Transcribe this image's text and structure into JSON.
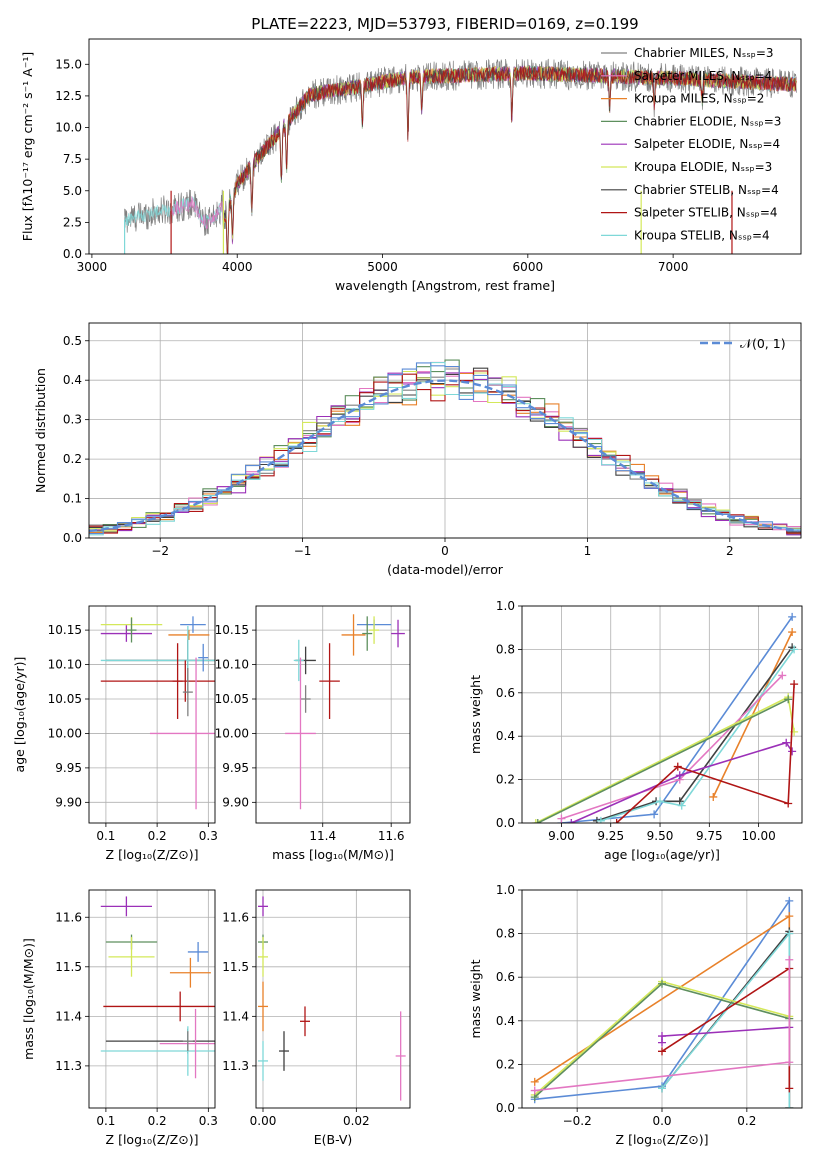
{
  "figure_title": "PLATE=2223, MJD=53793, FIBERID=0169, z=0.199",
  "colors": {
    "chabrier_miles": "#808080",
    "salpeter_miles": "#e377c2",
    "kroupa_miles": "#e8812a",
    "chabrier_elodie": "#5e8f5e",
    "salpeter_elodie": "#9b30b8",
    "kroupa_elodie": "#d4e85a",
    "chabrier_stelib": "#404040",
    "salpeter_stelib": "#b01515",
    "kroupa_stelib": "#7fd8d8",
    "gaussian": "#5b8bd6",
    "cross_blue": "#5b8bd6",
    "grid": "#b0b0b0"
  },
  "chart_data": [
    {
      "id": "spectrum",
      "type": "line",
      "xlabel": "wavelength [Angstrom, rest frame]",
      "ylabel": "Flux [fλ10⁻¹⁷ erg cm⁻² s⁻¹ A⁻¹]",
      "xlim": [
        2980,
        7880
      ],
      "ylim": [
        0,
        17
      ],
      "xticks": [
        "3000",
        "4000",
        "5000",
        "6000",
        "7000"
      ],
      "yticks": [
        "0.0",
        "2.5",
        "5.0",
        "7.5",
        "10.0",
        "12.5",
        "15.0"
      ],
      "xtick_values": [
        3000,
        4000,
        5000,
        6000,
        7000
      ],
      "ytick_values": [
        0,
        2.5,
        5,
        7.5,
        10,
        12.5,
        15
      ],
      "spectrum_range": [
        3225,
        7850
      ],
      "legend": [
        {
          "label": "Chabrier MILES, Nₛₛₚ=3",
          "key": "chabrier_miles"
        },
        {
          "label": "Salpeter MILES, Nₛₛₚ=4",
          "key": "salpeter_miles"
        },
        {
          "label": "Kroupa MILES, Nₛₛₚ=2",
          "key": "kroupa_miles"
        },
        {
          "label": "Chabrier ELODIE, Nₛₛₚ=3",
          "key": "chabrier_elodie"
        },
        {
          "label": "Salpeter ELODIE, Nₛₛₚ=4",
          "key": "salpeter_elodie"
        },
        {
          "label": "Kroupa ELODIE, Nₛₛₚ=3",
          "key": "kroupa_elodie"
        },
        {
          "label": "Chabrier STELIB, Nₛₛₚ=4",
          "key": "chabrier_stelib"
        },
        {
          "label": "Salpeter STELIB, Nₛₛₚ=4",
          "key": "salpeter_stelib"
        },
        {
          "label": "Kroupa STELIB, Nₛₛₚ=4",
          "key": "kroupa_stelib"
        }
      ],
      "legend_placement": "right",
      "model_start_lines": [
        3545,
        3905,
        6780,
        7405
      ]
    },
    {
      "id": "residuals",
      "type": "histogram",
      "xlabel": "(data-model)/error",
      "ylabel": "Normed distribution",
      "xlim": [
        -2.5,
        2.5
      ],
      "ylim": [
        0,
        0.545
      ],
      "xticks": [
        "−2",
        "−1",
        "0",
        "1",
        "2"
      ],
      "yticks": [
        "0.0",
        "0.1",
        "0.2",
        "0.3",
        "0.4",
        "0.5"
      ],
      "xtick_values": [
        -2,
        -1,
        0,
        1,
        2
      ],
      "ytick_values": [
        0,
        0.1,
        0.2,
        0.3,
        0.4,
        0.5
      ],
      "gaussian_label": "𝒩(0, 1)",
      "legend_placement": "top-right",
      "grid": true,
      "bin_width": 0.1
    },
    {
      "id": "age_vs_Z",
      "type": "scatter",
      "xlabel": "Z [log₁₀(Z/Z⊙)]",
      "ylabel": "age  [log₁₀(age/yr)]",
      "xlim": [
        0.067,
        0.313
      ],
      "ylim": [
        9.87,
        10.185
      ],
      "xticks": [
        "0.1",
        "0.2",
        "0.3"
      ],
      "xtick_values": [
        0.1,
        0.2,
        0.3
      ],
      "yticks": [
        "9.90",
        "9.95",
        "10.00",
        "10.05",
        "10.10",
        "10.15"
      ],
      "ytick_values": [
        9.9,
        9.95,
        10.0,
        10.05,
        10.1,
        10.15
      ],
      "points": [
        {
          "x": 0.15,
          "y": 10.158,
          "xerr": 0.06,
          "yerr": 0.011,
          "c": "kroupa_elodie"
        },
        {
          "x": 0.14,
          "y": 10.145,
          "xerr": 0.05,
          "yerr": 0.012,
          "c": "salpeter_elodie"
        },
        {
          "x": 0.15,
          "y": 10.15,
          "xerr": 0.0,
          "yerr": 0.018,
          "c": "chabrier_elodie"
        },
        {
          "x": 0.27,
          "y": 10.158,
          "xerr": 0.025,
          "yerr": 0.012,
          "c": "cross_blue"
        },
        {
          "x": 0.262,
          "y": 10.143,
          "xerr": 0.04,
          "yerr": 0.0,
          "c": "kroupa_miles"
        },
        {
          "x": 0.26,
          "y": 10.106,
          "xerr": 0.16,
          "yerr": 0.03,
          "c": "chabrier_stelib"
        },
        {
          "x": 0.26,
          "y": 10.106,
          "xerr": 0.17,
          "yerr": 0.05,
          "c": "kroupa_stelib"
        },
        {
          "x": 0.255,
          "y": 10.076,
          "xerr": 0.165,
          "yerr": 0.03,
          "c": "salpeter_stelib"
        },
        {
          "x": 0.24,
          "y": 10.076,
          "xerr": 0.0,
          "yerr": 0.055,
          "c": "salpeter_stelib"
        },
        {
          "x": 0.26,
          "y": 10.06,
          "xerr": 0.0,
          "yerr": 0.035,
          "c": "chabrier_miles"
        },
        {
          "x": 0.276,
          "y": 10.0,
          "xerr": 0.09,
          "yerr": 0.11,
          "c": "salpeter_miles"
        },
        {
          "x": 0.29,
          "y": 10.11,
          "xerr": 0.0,
          "yerr": 0.02,
          "c": "cross_blue"
        }
      ]
    },
    {
      "id": "age_vs_mass",
      "type": "scatter",
      "xlabel": "mass [log₁₀(M/M⊙)]",
      "ylabel": "",
      "xlim": [
        11.205,
        11.655
      ],
      "ylim": [
        9.87,
        10.185
      ],
      "xticks": [
        "11.4",
        "11.6"
      ],
      "xtick_values": [
        11.4,
        11.6
      ],
      "yticks": [
        "9.90",
        "9.95",
        "10.00",
        "10.05",
        "10.10",
        "10.15"
      ],
      "ytick_values": [
        9.9,
        9.95,
        10.0,
        10.05,
        10.1,
        10.15
      ],
      "points": [
        {
          "x": 11.55,
          "y": 10.158,
          "xerr": 0.05,
          "yerr": 0.0,
          "c": "cross_blue"
        },
        {
          "x": 11.62,
          "y": 10.145,
          "xerr": 0.02,
          "yerr": 0.02,
          "c": "salpeter_elodie"
        },
        {
          "x": 11.55,
          "y": 10.15,
          "xerr": 0.0,
          "yerr": 0.02,
          "c": "kroupa_elodie"
        },
        {
          "x": 11.53,
          "y": 10.145,
          "xerr": 0.0,
          "yerr": 0.025,
          "c": "chabrier_elodie"
        },
        {
          "x": 11.49,
          "y": 10.143,
          "xerr": 0.035,
          "yerr": 0.03,
          "c": "kroupa_miles"
        },
        {
          "x": 11.35,
          "y": 10.106,
          "xerr": 0.03,
          "yerr": 0.02,
          "c": "chabrier_stelib"
        },
        {
          "x": 11.33,
          "y": 10.106,
          "xerr": 0.0,
          "yerr": 0.03,
          "c": "kroupa_stelib"
        },
        {
          "x": 11.42,
          "y": 10.076,
          "xerr": 0.03,
          "yerr": 0.055,
          "c": "salpeter_stelib"
        },
        {
          "x": 11.35,
          "y": 10.05,
          "xerr": 0.0,
          "yerr": 0.02,
          "c": "chabrier_miles"
        },
        {
          "x": 11.335,
          "y": 10.0,
          "xerr": 0.045,
          "yerr": 0.11,
          "c": "salpeter_miles"
        }
      ]
    },
    {
      "id": "mass_weight_vs_age",
      "type": "line",
      "xlabel": "age  [log₁₀(age/yr)]",
      "ylabel": "mass weight",
      "xlim": [
        8.8,
        10.22
      ],
      "ylim": [
        0,
        1.0
      ],
      "xticks": [
        "9.00",
        "9.25",
        "9.50",
        "9.75",
        "10.00"
      ],
      "xtick_values": [
        9.0,
        9.25,
        9.5,
        9.75,
        10.0
      ],
      "yticks": [
        "0.0",
        "0.2",
        "0.4",
        "0.6",
        "0.8",
        "1.0"
      ],
      "ytick_values": [
        0,
        0.2,
        0.4,
        0.6,
        0.8,
        1.0
      ],
      "series": [
        {
          "c": "cross_blue",
          "x": [
            9.0,
            9.47,
            10.17
          ],
          "y": [
            0.0,
            0.04,
            0.95
          ]
        },
        {
          "c": "kroupa_miles",
          "x": [
            9.77,
            10.17
          ],
          "y": [
            0.12,
            0.88
          ]
        },
        {
          "c": "chabrier_stelib",
          "x": [
            9.18,
            9.48,
            9.6,
            10.17
          ],
          "y": [
            0.01,
            0.1,
            0.1,
            0.81
          ]
        },
        {
          "c": "kroupa_stelib",
          "x": [
            9.2,
            9.5,
            9.61,
            10.18
          ],
          "y": [
            0.01,
            0.1,
            0.08,
            0.8
          ]
        },
        {
          "c": "salpeter_miles",
          "x": [
            9.0,
            9.6,
            10.12
          ],
          "y": [
            0.02,
            0.2,
            0.68
          ]
        },
        {
          "c": "kroupa_elodie",
          "x": [
            8.87,
            10.15,
            10.18
          ],
          "y": [
            0.0,
            0.58,
            0.42
          ]
        },
        {
          "c": "chabrier_elodie",
          "x": [
            8.88,
            10.15
          ],
          "y": [
            0.0,
            0.57
          ]
        },
        {
          "c": "salpeter_elodie",
          "x": [
            9.05,
            9.6,
            10.14,
            10.17
          ],
          "y": [
            0.0,
            0.22,
            0.37,
            0.33
          ]
        },
        {
          "c": "salpeter_stelib",
          "x": [
            9.28,
            9.59,
            10.15,
            10.18
          ],
          "y": [
            0.0,
            0.26,
            0.09,
            0.64
          ]
        }
      ]
    },
    {
      "id": "mass_vs_Z",
      "type": "scatter",
      "xlabel": "Z [log₁₀(Z/Z⊙)]",
      "ylabel": "mass [log₁₀(M/M⊙)]",
      "xlim": [
        0.067,
        0.313
      ],
      "ylim": [
        11.215,
        11.655
      ],
      "xticks": [
        "0.1",
        "0.2",
        "0.3"
      ],
      "xtick_values": [
        0.1,
        0.2,
        0.3
      ],
      "yticks": [
        "11.3",
        "11.4",
        "11.5",
        "11.6"
      ],
      "ytick_values": [
        11.3,
        11.4,
        11.5,
        11.6
      ],
      "points": [
        {
          "x": 0.14,
          "y": 11.622,
          "xerr": 0.05,
          "yerr": 0.02,
          "c": "salpeter_elodie"
        },
        {
          "x": 0.15,
          "y": 11.55,
          "xerr": 0.05,
          "yerr": 0.015,
          "c": "chabrier_elodie"
        },
        {
          "x": 0.15,
          "y": 11.52,
          "xerr": 0.045,
          "yerr": 0.04,
          "c": "kroupa_elodie"
        },
        {
          "x": 0.28,
          "y": 11.53,
          "xerr": 0.02,
          "yerr": 0.02,
          "c": "cross_blue"
        },
        {
          "x": 0.265,
          "y": 11.488,
          "xerr": 0.04,
          "yerr": 0.03,
          "c": "kroupa_miles"
        },
        {
          "x": 0.245,
          "y": 11.42,
          "xerr": 0.15,
          "yerr": 0.03,
          "c": "salpeter_stelib"
        },
        {
          "x": 0.26,
          "y": 11.35,
          "xerr": 0.16,
          "yerr": 0.025,
          "c": "chabrier_stelib"
        },
        {
          "x": 0.26,
          "y": 11.33,
          "xerr": 0.17,
          "yerr": 0.05,
          "c": "kroupa_stelib"
        },
        {
          "x": 0.275,
          "y": 11.345,
          "xerr": 0.07,
          "yerr": 0.07,
          "c": "salpeter_miles"
        },
        {
          "x": 0.26,
          "y": 11.35,
          "xerr": 0.0,
          "yerr": 0.02,
          "c": "chabrier_miles"
        }
      ]
    },
    {
      "id": "mass_vs_ebv",
      "type": "scatter",
      "xlabel": "E(B-V)",
      "ylabel": "",
      "xlim": [
        -0.0015,
        0.0315
      ],
      "ylim": [
        11.215,
        11.655
      ],
      "xticks": [
        "0.00",
        "0.02"
      ],
      "xtick_values": [
        0.0,
        0.02
      ],
      "yticks": [
        "11.3",
        "11.4",
        "11.5",
        "11.6"
      ],
      "ytick_values": [
        11.3,
        11.4,
        11.5,
        11.6
      ],
      "points": [
        {
          "x": 0.0,
          "y": 11.622,
          "xerr": 0.0,
          "yerr": 0.02,
          "c": "salpeter_elodie"
        },
        {
          "x": 0.0,
          "y": 11.55,
          "xerr": 0.0,
          "yerr": 0.015,
          "c": "chabrier_elodie"
        },
        {
          "x": 0.0,
          "y": 11.52,
          "xerr": 0.0,
          "yerr": 0.04,
          "c": "kroupa_elodie"
        },
        {
          "x": 0.0,
          "y": 11.42,
          "xerr": 0.0,
          "yerr": 0.05,
          "c": "kroupa_miles"
        },
        {
          "x": 0.0,
          "y": 11.31,
          "xerr": 0.0,
          "yerr": 0.04,
          "c": "kroupa_stelib"
        },
        {
          "x": 0.009,
          "y": 11.39,
          "xerr": 0.0,
          "yerr": 0.03,
          "c": "salpeter_stelib"
        },
        {
          "x": 0.0045,
          "y": 11.33,
          "xerr": 0.0,
          "yerr": 0.04,
          "c": "chabrier_stelib"
        },
        {
          "x": 0.0295,
          "y": 11.32,
          "xerr": 0.0,
          "yerr": 0.09,
          "c": "salpeter_miles"
        }
      ]
    },
    {
      "id": "mass_weight_vs_Z",
      "type": "line",
      "xlabel": "Z [log₁₀(Z/Z⊙)]",
      "ylabel": "mass weight",
      "xlim": [
        -0.33,
        0.33
      ],
      "ylim": [
        0,
        1.0
      ],
      "xticks": [
        "−0.2",
        "0.0",
        "0.2"
      ],
      "xtick_values": [
        -0.2,
        0.0,
        0.2
      ],
      "yticks": [
        "0.0",
        "0.2",
        "0.4",
        "0.6",
        "0.8",
        "1.0"
      ],
      "ytick_values": [
        0,
        0.2,
        0.4,
        0.6,
        0.8,
        1.0
      ],
      "series": [
        {
          "c": "cross_blue",
          "x": [
            -0.3,
            0.0,
            0.3,
            0.3
          ],
          "y": [
            0.04,
            0.1,
            0.95,
            0.0
          ]
        },
        {
          "c": "kroupa_miles",
          "x": [
            -0.3,
            0.3,
            0.3
          ],
          "y": [
            0.12,
            0.88,
            0.0
          ]
        },
        {
          "c": "chabrier_stelib",
          "x": [
            0.0,
            0.3,
            0.3
          ],
          "y": [
            0.09,
            0.81,
            0.0
          ]
        },
        {
          "c": "kroupa_stelib",
          "x": [
            0.0,
            0.3,
            0.3
          ],
          "y": [
            0.09,
            0.8,
            0.0
          ]
        },
        {
          "c": "kroupa_elodie",
          "x": [
            -0.3,
            0.0,
            0.3
          ],
          "y": [
            0.06,
            0.58,
            0.42
          ]
        },
        {
          "c": "chabrier_elodie",
          "x": [
            -0.3,
            0.0,
            0.3
          ],
          "y": [
            0.05,
            0.57,
            0.41
          ]
        },
        {
          "c": "salpeter_elodie",
          "x": [
            0.0,
            0.0,
            0.3
          ],
          "y": [
            0.3,
            0.33,
            0.37
          ]
        },
        {
          "c": "salpeter_stelib",
          "x": [
            0.0,
            0.3,
            0.3
          ],
          "y": [
            0.26,
            0.64,
            0.09
          ]
        },
        {
          "c": "salpeter_miles",
          "x": [
            -0.3,
            0.3,
            0.3
          ],
          "y": [
            0.08,
            0.21,
            0.68
          ]
        }
      ]
    }
  ]
}
